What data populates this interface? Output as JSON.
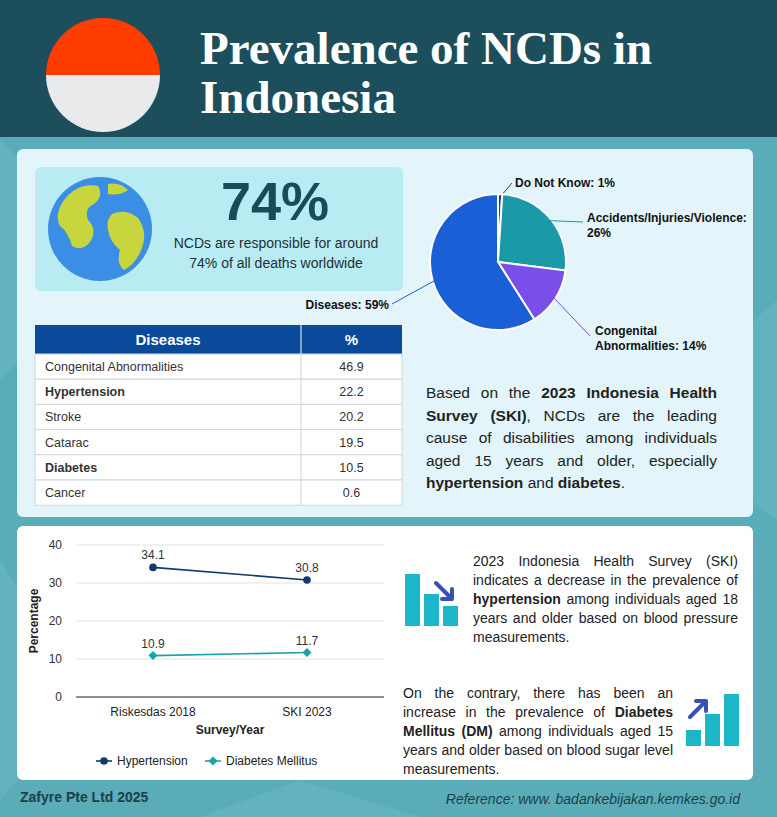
{
  "header": {
    "title": "Prevalence of NCDs in Indonesia"
  },
  "highlight": {
    "value": "74%",
    "text": "NCDs are responsible for around 74% of all deaths worldwide"
  },
  "table": {
    "columns": [
      "Diseases",
      "%"
    ],
    "rows": [
      {
        "cells": [
          "Congenital Abnormalities",
          46.9
        ],
        "bold": false
      },
      {
        "cells": [
          "Hypertension",
          22.2
        ],
        "bold": true
      },
      {
        "cells": [
          "Stroke",
          20.2
        ],
        "bold": false
      },
      {
        "cells": [
          "Catarac",
          19.5
        ],
        "bold": false
      },
      {
        "cells": [
          "Diabetes",
          10.5
        ],
        "bold": true
      },
      {
        "cells": [
          "Cancer",
          0.6
        ],
        "bold": false
      }
    ]
  },
  "summary": {
    "segments": [
      {
        "text": "Based on the ",
        "bold": false
      },
      {
        "text": "2023 Indonesia Health Survey (SKI)",
        "bold": true
      },
      {
        "text": ", NCDs are the leading cause of disabilities among individuals aged 15 years and older, especially ",
        "bold": false
      },
      {
        "text": "hypertension",
        "bold": true
      },
      {
        "text": " and ",
        "bold": false
      },
      {
        "text": "diabetes",
        "bold": true
      },
      {
        "text": ".",
        "bold": false
      }
    ]
  },
  "notes": [
    {
      "segments": [
        {
          "text": "2023 Indonesia Health Survey (SKI) indicates a decrease in the prevalence of ",
          "bold": false
        },
        {
          "text": "hypertension",
          "bold": true
        },
        {
          "text": " among individuals aged 18 years and older based on blood pressure measurements.",
          "bold": false
        }
      ]
    },
    {
      "segments": [
        {
          "text": "On the contrary, there has been an increase in the prevalence of ",
          "bold": false
        },
        {
          "text": "Diabetes Mellitus (DM)",
          "bold": true
        },
        {
          "text": " among individuals aged 15 years and older based on blood sugar level measurements.",
          "bold": false
        }
      ]
    }
  ],
  "footer": {
    "credit": "Zafyre Pte Ltd 2025",
    "reference": "Reference: www. badankebijakan.kemkes.go.id"
  },
  "chart_data": [
    {
      "type": "pie",
      "categories": [
        "Do Not Know:",
        "Accidents/Injuries/Violence:",
        "Congenital Abnormalities:",
        "Diseases:"
      ],
      "values": [
        1,
        26,
        14,
        59
      ],
      "value_labels": [
        "1%",
        "26%",
        "14%",
        "59%"
      ],
      "colors": [
        "#2b3a8f",
        "#1a9aa8",
        "#7a4ee8",
        "#1b5fd6"
      ],
      "data_labels": true
    },
    {
      "type": "line",
      "categories": [
        "Riskesdas 2018",
        "SKI 2023"
      ],
      "series": [
        {
          "name": "Hypertension",
          "color": "#0d3c6e",
          "values": [
            34.1,
            30.8
          ],
          "marker": "circle"
        },
        {
          "name": "Diabetes Mellitus",
          "color": "#1aa3a8",
          "values": [
            10.9,
            11.7
          ],
          "marker": "diamond"
        }
      ],
      "x_label": "Survey/Year",
      "y_label": "Percentage",
      "ylim": [
        0,
        40
      ],
      "yticks": [
        0,
        10,
        20,
        30,
        40
      ],
      "grid": true,
      "data_labels": true,
      "legend": "bottom"
    }
  ]
}
